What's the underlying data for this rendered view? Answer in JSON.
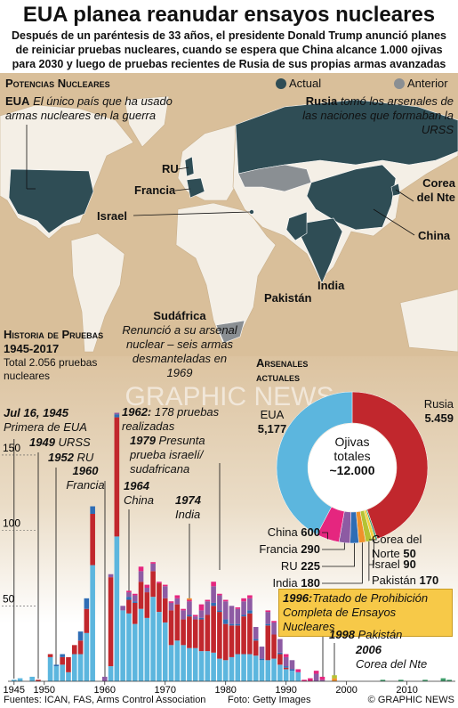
{
  "header": {
    "title": "EUA planea reanudar ensayos nucleares",
    "subtitle": "Después de un paréntesis de 33 años, el presidente Donald Trump anunció planes de reiniciar pruebas nucleares, cuando  se espera que China alcance 1.000 ojivas para 2030 y luego de pruebas recientes de Rusia de sus propias armas avanzadas"
  },
  "map": {
    "title": "Potencias Nucleares",
    "legend": [
      "Actual",
      "Anterior"
    ],
    "notes": [
      {
        "label": "EUA",
        "text": "El único país que ha usado armas nucleares en la guerra"
      },
      {
        "label": "Rusia",
        "text": "tomó los arsenales de las naciones que formaban la URSS"
      },
      {
        "label": "Sudáfrica",
        "text": "Renunció a su arsenal nuclear – seis armas desmanteladas en 1969"
      }
    ],
    "labels": [
      "RU",
      "Francia",
      "Israel",
      "Corea del Nte",
      "China",
      "India",
      "Pakistán"
    ]
  },
  "history": {
    "title": "Historia de Pruebas",
    "period": "1945-2017",
    "total": "Total 2.056 pruebas nucleares"
  },
  "watermark": "GRAPHIC NEWS",
  "chart_data": [
    {
      "type": "bar",
      "stacked": true,
      "x": [
        1945,
        1946,
        1947,
        1948,
        1949,
        1950,
        1951,
        1952,
        1953,
        1954,
        1955,
        1956,
        1957,
        1958,
        1959,
        1960,
        1961,
        1962,
        1963,
        1964,
        1965,
        1966,
        1967,
        1968,
        1969,
        1970,
        1971,
        1972,
        1973,
        1974,
        1975,
        1976,
        1977,
        1978,
        1979,
        1980,
        1981,
        1982,
        1983,
        1984,
        1985,
        1986,
        1987,
        1988,
        1989,
        1990,
        1991,
        1992,
        1993,
        1994,
        1995,
        1996,
        1997,
        1998,
        1999,
        2000,
        2001,
        2002,
        2003,
        2004,
        2005,
        2006,
        2007,
        2008,
        2009,
        2010,
        2011,
        2012,
        2013,
        2014,
        2015,
        2016,
        2017
      ],
      "series": [
        {
          "color": "#5cb6de",
          "values": [
            1,
            2,
            0,
            3,
            0,
            0,
            16,
            10,
            11,
            6,
            18,
            18,
            32,
            77,
            0,
            0,
            10,
            96,
            47,
            45,
            38,
            48,
            42,
            56,
            46,
            39,
            24,
            27,
            24,
            22,
            22,
            20,
            20,
            19,
            15,
            14,
            16,
            18,
            18,
            18,
            17,
            14,
            14,
            15,
            11,
            8,
            7,
            6,
            0,
            0,
            0,
            0,
            0,
            0,
            0,
            0,
            0,
            0,
            0,
            0,
            0,
            0,
            0,
            0,
            0,
            0,
            0,
            0,
            0,
            0,
            0,
            0,
            0
          ]
        },
        {
          "color": "#c1272d",
          "values": [
            0,
            0,
            0,
            0,
            1,
            0,
            2,
            0,
            5,
            10,
            6,
            9,
            16,
            34,
            0,
            0,
            59,
            79,
            0,
            9,
            14,
            18,
            17,
            17,
            19,
            16,
            23,
            24,
            17,
            21,
            19,
            21,
            24,
            31,
            31,
            24,
            21,
            19,
            25,
            27,
            10,
            0,
            23,
            16,
            7,
            1,
            0,
            0,
            0,
            0,
            0,
            0,
            0,
            0,
            0,
            0,
            0,
            0,
            0,
            0,
            0,
            0,
            0,
            0,
            0,
            0,
            0,
            0,
            0,
            0,
            0,
            0,
            0
          ]
        },
        {
          "color": "#2f6db5",
          "values": [
            0,
            0,
            0,
            0,
            0,
            0,
            0,
            1,
            2,
            0,
            0,
            6,
            7,
            5,
            0,
            0,
            0,
            2,
            0,
            2,
            1,
            0,
            0,
            0,
            0,
            0,
            0,
            0,
            0,
            1,
            0,
            1,
            0,
            2,
            1,
            3,
            1,
            1,
            1,
            2,
            1,
            1,
            1,
            0,
            1,
            1,
            1,
            0,
            0,
            0,
            0,
            0,
            0,
            0,
            0,
            0,
            0,
            0,
            0,
            0,
            0,
            0,
            0,
            0,
            0,
            0,
            0,
            0,
            0,
            0,
            0,
            0,
            0
          ]
        },
        {
          "color": "#8d5ba3",
          "values": [
            0,
            0,
            0,
            0,
            0,
            0,
            0,
            0,
            0,
            0,
            0,
            0,
            0,
            0,
            0,
            3,
            2,
            1,
            3,
            3,
            4,
            7,
            3,
            5,
            0,
            8,
            5,
            4,
            6,
            9,
            2,
            5,
            9,
            11,
            10,
            12,
            12,
            10,
            9,
            8,
            8,
            8,
            8,
            8,
            9,
            6,
            6,
            0,
            0,
            0,
            5,
            1,
            0,
            0,
            0,
            0,
            0,
            0,
            0,
            0,
            0,
            0,
            0,
            0,
            0,
            0,
            0,
            0,
            0,
            0,
            0,
            0,
            0
          ]
        },
        {
          "color": "#e5267f",
          "values": [
            0,
            0,
            0,
            0,
            0,
            0,
            0,
            0,
            0,
            0,
            0,
            0,
            0,
            0,
            0,
            0,
            0,
            0,
            0,
            1,
            1,
            3,
            2,
            1,
            1,
            1,
            1,
            2,
            1,
            1,
            1,
            4,
            1,
            3,
            1,
            1,
            0,
            1,
            2,
            2,
            0,
            0,
            1,
            1,
            0,
            2,
            0,
            2,
            1,
            2,
            2,
            2,
            0,
            0,
            0,
            0,
            0,
            0,
            0,
            0,
            0,
            0,
            0,
            0,
            0,
            0,
            0,
            0,
            0,
            0,
            0,
            0,
            0
          ]
        },
        {
          "color": "#f0912b",
          "values": [
            0,
            0,
            0,
            0,
            0,
            0,
            0,
            0,
            0,
            0,
            0,
            0,
            0,
            0,
            0,
            0,
            0,
            0,
            0,
            0,
            0,
            0,
            0,
            0,
            0,
            0,
            0,
            0,
            0,
            1,
            0,
            0,
            0,
            0,
            0,
            0,
            0,
            0,
            0,
            0,
            0,
            0,
            0,
            0,
            0,
            0,
            0,
            0,
            0,
            0,
            0,
            0,
            0,
            2,
            0,
            0,
            0,
            0,
            0,
            0,
            0,
            0,
            0,
            0,
            0,
            0,
            0,
            0,
            0,
            0,
            0,
            0,
            0
          ]
        },
        {
          "color": "#b5c334",
          "values": [
            0,
            0,
            0,
            0,
            0,
            0,
            0,
            0,
            0,
            0,
            0,
            0,
            0,
            0,
            0,
            0,
            0,
            0,
            0,
            0,
            0,
            0,
            0,
            0,
            0,
            0,
            0,
            0,
            0,
            0,
            0,
            0,
            0,
            0,
            0,
            0,
            0,
            0,
            0,
            0,
            0,
            0,
            0,
            0,
            0,
            0,
            0,
            0,
            0,
            0,
            0,
            0,
            0,
            2,
            0,
            0,
            0,
            0,
            0,
            0,
            0,
            0,
            0,
            0,
            0,
            0,
            0,
            0,
            0,
            0,
            0,
            0,
            0
          ]
        },
        {
          "color": "#3f9e6b",
          "values": [
            0,
            0,
            0,
            0,
            0,
            0,
            0,
            0,
            0,
            0,
            0,
            0,
            0,
            0,
            0,
            0,
            0,
            0,
            0,
            0,
            0,
            0,
            0,
            0,
            0,
            0,
            0,
            0,
            0,
            0,
            0,
            0,
            0,
            0,
            0,
            0,
            0,
            0,
            0,
            0,
            0,
            0,
            0,
            0,
            0,
            0,
            0,
            0,
            0,
            0,
            0,
            0,
            0,
            0,
            0,
            0,
            0,
            0,
            0,
            0,
            0,
            1,
            0,
            0,
            1,
            0,
            0,
            0,
            1,
            0,
            0,
            2,
            1
          ]
        }
      ],
      "xlim": [
        1944,
        2018
      ],
      "xticks": [
        1945,
        1950,
        1960,
        1970,
        1980,
        1990,
        2000,
        2010
      ],
      "ylim": [
        0,
        160
      ],
      "yticks": [
        50,
        100,
        150
      ],
      "annotations": [
        {
          "title": "Jul 16, 1945",
          "text": "Primera de EUA"
        },
        {
          "title": "1949",
          "text": "URSS"
        },
        {
          "title": "1952",
          "text": "RU"
        },
        {
          "title": "1960",
          "text": "Francia"
        },
        {
          "title": "1964",
          "text": "China"
        },
        {
          "title": "1974",
          "text": "India"
        },
        {
          "title": "1962:",
          "text": "178 pruebas realizadas"
        },
        {
          "title": "1979",
          "text": "Presunta prueba israelí/ sudafricana"
        },
        {
          "title": "1996:",
          "text": "Tratado de Prohibición Completa de Ensayos Nucleares"
        },
        {
          "title": "1998",
          "text": "Pakistán"
        },
        {
          "title": "2006",
          "text": "Corea del Nte"
        }
      ]
    },
    {
      "type": "donut",
      "title": "Arsenales actuales",
      "center_title": "Ojivas totales",
      "center_label": "~12.000",
      "categories": [
        "Rusia",
        "Corea del Norte",
        "Israel",
        "Pakistán",
        "India",
        "RU",
        "Francia",
        "China",
        "EUA"
      ],
      "values": [
        5459,
        50,
        90,
        170,
        180,
        225,
        290,
        600,
        5177
      ],
      "value_labels": [
        "5.459",
        "50",
        "90",
        "170",
        "180",
        "225",
        "290",
        "600",
        "5,177"
      ],
      "colors": [
        "#c1272d",
        "#3f9e6b",
        "#f4d03f",
        "#b5c334",
        "#f0912b",
        "#2f6db5",
        "#8d5ba3",
        "#e5267f",
        "#5cb6de"
      ]
    }
  ],
  "footer": {
    "sources": "Fuentes: ICAN, FAS, Arms Control Association",
    "photo": "Foto: Getty Images",
    "credit": "© GRAPHIC NEWS"
  }
}
